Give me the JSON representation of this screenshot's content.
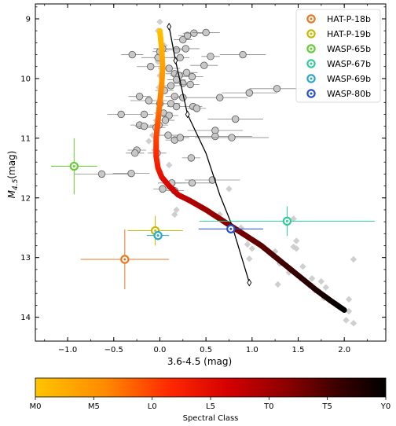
{
  "chart_data": {
    "type": "scatter",
    "title": "",
    "xlabel": "3.6-4.5 (mag)",
    "ylabel": "M_{4.5}(mag)",
    "xlim": [
      -1.35,
      2.45
    ],
    "ylim": [
      14.4,
      8.75
    ],
    "y_inverted": true,
    "xticks": [
      -1.0,
      -0.5,
      0.0,
      0.5,
      1.0,
      1.5,
      2.0
    ],
    "xtick_labels": [
      "−1.0",
      "−0.5",
      "0.0",
      "0.5",
      "1.0",
      "1.5",
      "2.0"
    ],
    "yticks": [
      9,
      10,
      11,
      12,
      13,
      14
    ],
    "ytick_labels": [
      "9",
      "10",
      "11",
      "12",
      "13",
      "14"
    ],
    "grid": false,
    "legend_position": "upper right",
    "colorbar": {
      "label": "Spectral Class",
      "ticks": [
        "M0",
        "M5",
        "L0",
        "L5",
        "T0",
        "T5",
        "Y0"
      ],
      "colors": [
        "#ffc400",
        "#ff8a00",
        "#ff2a00",
        "#d40000",
        "#8c0000",
        "#3c0000",
        "#000000"
      ]
    },
    "field_objects": [
      {
        "x": 0.0,
        "y": 9.05
      },
      {
        "x": -0.02,
        "y": 9.2
      },
      {
        "x": 0.05,
        "y": 9.45
      },
      {
        "x": 0.02,
        "y": 9.55
      },
      {
        "x": -0.03,
        "y": 9.65
      },
      {
        "x": -0.02,
        "y": 9.72
      },
      {
        "x": 0.0,
        "y": 9.95
      },
      {
        "x": -0.01,
        "y": 10.15
      },
      {
        "x": 0.0,
        "y": 10.4
      },
      {
        "x": -0.04,
        "y": 10.7
      },
      {
        "x": -0.08,
        "y": 10.95
      },
      {
        "x": -0.12,
        "y": 11.05
      },
      {
        "x": -0.06,
        "y": 11.2
      },
      {
        "x": 0.1,
        "y": 11.45
      },
      {
        "x": 0.15,
        "y": 11.85
      },
      {
        "x": 0.18,
        "y": 12.2
      },
      {
        "x": 0.16,
        "y": 12.28
      },
      {
        "x": 0.65,
        "y": 12.28
      },
      {
        "x": 0.75,
        "y": 11.85
      },
      {
        "x": 0.88,
        "y": 12.5
      },
      {
        "x": 0.95,
        "y": 12.78
      },
      {
        "x": 1.0,
        "y": 12.85
      },
      {
        "x": 0.97,
        "y": 13.02
      },
      {
        "x": 1.25,
        "y": 12.9
      },
      {
        "x": 1.3,
        "y": 13.1
      },
      {
        "x": 1.28,
        "y": 13.45
      },
      {
        "x": 1.4,
        "y": 13.25
      },
      {
        "x": 1.45,
        "y": 12.35
      },
      {
        "x": 1.48,
        "y": 12.72
      },
      {
        "x": 1.45,
        "y": 12.82
      },
      {
        "x": 1.48,
        "y": 12.85
      },
      {
        "x": 1.55,
        "y": 13.15
      },
      {
        "x": 1.65,
        "y": 13.35
      },
      {
        "x": 1.75,
        "y": 13.4
      },
      {
        "x": 1.68,
        "y": 13.55
      },
      {
        "x": 1.8,
        "y": 13.5
      },
      {
        "x": 1.78,
        "y": 13.68
      },
      {
        "x": 2.05,
        "y": 13.7
      },
      {
        "x": 2.05,
        "y": 13.9
      },
      {
        "x": 2.02,
        "y": 14.05
      },
      {
        "x": 2.1,
        "y": 14.1
      },
      {
        "x": 2.1,
        "y": 13.03
      }
    ],
    "planets": [
      {
        "x": -0.3,
        "y": 9.6,
        "xerr": 0.12,
        "yerr": 0.05
      },
      {
        "x": -0.1,
        "y": 9.8,
        "xerr": 0.15,
        "yerr": 0.05
      },
      {
        "x": -0.02,
        "y": 9.65,
        "xerr": 0.18,
        "yerr": 0.05
      },
      {
        "x": 0.0,
        "y": 9.55,
        "xerr": 0.08,
        "yerr": 0.05
      },
      {
        "x": 0.03,
        "y": 9.5,
        "xerr": 0.1,
        "yerr": 0.05
      },
      {
        "x": 0.18,
        "y": 9.52,
        "xerr": 0.12,
        "yerr": 0.05
      },
      {
        "x": 0.22,
        "y": 9.65,
        "xerr": 0.1,
        "yerr": 0.05
      },
      {
        "x": 0.28,
        "y": 9.5,
        "xerr": 0.15,
        "yerr": 0.05
      },
      {
        "x": 0.25,
        "y": 9.35,
        "xerr": 0.1,
        "yerr": 0.05
      },
      {
        "x": 0.3,
        "y": 9.28,
        "xerr": 0.1,
        "yerr": 0.05
      },
      {
        "x": 0.37,
        "y": 9.24,
        "xerr": 0.12,
        "yerr": 0.05
      },
      {
        "x": 0.5,
        "y": 9.23,
        "xerr": 0.15,
        "yerr": 0.05
      },
      {
        "x": 0.55,
        "y": 9.63,
        "xerr": 0.1,
        "yerr": 0.05
      },
      {
        "x": 0.48,
        "y": 9.78,
        "xerr": 0.15,
        "yerr": 0.05
      },
      {
        "x": 0.9,
        "y": 9.6,
        "xerr": 0.25,
        "yerr": 0.05
      },
      {
        "x": 0.1,
        "y": 9.83,
        "xerr": 0.12,
        "yerr": 0.05
      },
      {
        "x": 0.16,
        "y": 9.92,
        "xerr": 0.1,
        "yerr": 0.05
      },
      {
        "x": 0.21,
        "y": 9.95,
        "xerr": 0.1,
        "yerr": 0.05
      },
      {
        "x": 0.29,
        "y": 9.9,
        "xerr": 0.12,
        "yerr": 0.05
      },
      {
        "x": 0.35,
        "y": 9.97,
        "xerr": 0.12,
        "yerr": 0.05
      },
      {
        "x": 0.25,
        "y": 10.08,
        "xerr": 0.1,
        "yerr": 0.05
      },
      {
        "x": 0.18,
        "y": 10.02,
        "xerr": 0.1,
        "yerr": 0.05
      },
      {
        "x": 0.33,
        "y": 10.1,
        "xerr": 0.1,
        "yerr": 0.05
      },
      {
        "x": 0.12,
        "y": 10.12,
        "xerr": 0.1,
        "yerr": 0.05
      },
      {
        "x": 0.05,
        "y": 10.2,
        "xerr": 0.1,
        "yerr": 0.05
      },
      {
        "x": 0.16,
        "y": 10.3,
        "xerr": 0.1,
        "yerr": 0.05
      },
      {
        "x": 0.25,
        "y": 10.32,
        "xerr": 0.1,
        "yerr": 0.05
      },
      {
        "x": -0.22,
        "y": 10.3,
        "xerr": 0.12,
        "yerr": 0.05
      },
      {
        "x": -0.12,
        "y": 10.37,
        "xerr": 0.2,
        "yerr": 0.05
      },
      {
        "x": 0.0,
        "y": 10.42,
        "xerr": 0.1,
        "yerr": 0.05
      },
      {
        "x": 0.12,
        "y": 10.42,
        "xerr": 0.1,
        "yerr": 0.05
      },
      {
        "x": 0.18,
        "y": 10.47,
        "xerr": 0.1,
        "yerr": 0.05
      },
      {
        "x": 0.36,
        "y": 10.47,
        "xerr": 0.1,
        "yerr": 0.05
      },
      {
        "x": 0.4,
        "y": 10.5,
        "xerr": 0.1,
        "yerr": 0.05
      },
      {
        "x": 0.65,
        "y": 10.32,
        "xerr": 0.3,
        "yerr": 0.05
      },
      {
        "x": 0.97,
        "y": 10.24,
        "xerr": 0.3,
        "yerr": 0.05
      },
      {
        "x": 1.27,
        "y": 10.17,
        "xerr": 0.3,
        "yerr": 0.05
      },
      {
        "x": -0.42,
        "y": 10.6,
        "xerr": 0.15,
        "yerr": 0.05
      },
      {
        "x": -0.17,
        "y": 10.6,
        "xerr": 0.1,
        "yerr": 0.05
      },
      {
        "x": 0.04,
        "y": 10.58,
        "xerr": 0.1,
        "yerr": 0.05
      },
      {
        "x": 0.1,
        "y": 10.62,
        "xerr": 0.1,
        "yerr": 0.05
      },
      {
        "x": 0.06,
        "y": 10.7,
        "xerr": 0.1,
        "yerr": 0.05
      },
      {
        "x": -0.22,
        "y": 10.78,
        "xerr": 0.1,
        "yerr": 0.05
      },
      {
        "x": -0.17,
        "y": 10.8,
        "xerr": 0.1,
        "yerr": 0.05
      },
      {
        "x": -0.04,
        "y": 10.82,
        "xerr": 0.1,
        "yerr": 0.05
      },
      {
        "x": -0.01,
        "y": 10.78,
        "xerr": 0.1,
        "yerr": 0.05
      },
      {
        "x": 0.6,
        "y": 10.87,
        "xerr": 0.3,
        "yerr": 0.05
      },
      {
        "x": 0.82,
        "y": 10.68,
        "xerr": 0.3,
        "yerr": 0.05
      },
      {
        "x": 0.6,
        "y": 10.97,
        "xerr": 0.4,
        "yerr": 0.05
      },
      {
        "x": 0.78,
        "y": 10.99,
        "xerr": 0.4,
        "yerr": 0.05
      },
      {
        "x": 0.09,
        "y": 10.95,
        "xerr": 0.1,
        "yerr": 0.05
      },
      {
        "x": 0.16,
        "y": 11.03,
        "xerr": 0.1,
        "yerr": 0.05
      },
      {
        "x": 0.22,
        "y": 10.99,
        "xerr": 0.1,
        "yerr": 0.05
      },
      {
        "x": -0.25,
        "y": 11.2,
        "xerr": 0.1,
        "yerr": 0.05
      },
      {
        "x": -0.27,
        "y": 11.25,
        "xerr": 0.1,
        "yerr": 0.05
      },
      {
        "x": -0.03,
        "y": 11.25,
        "xerr": 0.1,
        "yerr": 0.05
      },
      {
        "x": 0.34,
        "y": 11.33,
        "xerr": 0.1,
        "yerr": 0.05
      },
      {
        "x": -0.63,
        "y": 11.6,
        "xerr": 0.3,
        "yerr": 0.05
      },
      {
        "x": -0.31,
        "y": 11.59,
        "xerr": 0.2,
        "yerr": 0.05
      },
      {
        "x": 0.13,
        "y": 11.75,
        "xerr": 0.15,
        "yerr": 0.05
      },
      {
        "x": 0.35,
        "y": 11.75,
        "xerr": 0.2,
        "yerr": 0.05
      },
      {
        "x": 0.57,
        "y": 11.7,
        "xerr": 0.3,
        "yerr": 0.05
      },
      {
        "x": 0.03,
        "y": 11.85,
        "xerr": 0.1,
        "yerr": 0.05
      },
      {
        "x": 0.16,
        "y": 11.88,
        "xerr": 0.1,
        "yerr": 0.05
      }
    ],
    "sequence": [
      {
        "x": 0.0,
        "y": 9.2
      },
      {
        "x": 0.02,
        "y": 9.5
      },
      {
        "x": 0.03,
        "y": 9.8
      },
      {
        "x": 0.02,
        "y": 10.1
      },
      {
        "x": 0.0,
        "y": 10.4
      },
      {
        "x": -0.02,
        "y": 10.7
      },
      {
        "x": -0.04,
        "y": 11.0
      },
      {
        "x": -0.04,
        "y": 11.3
      },
      {
        "x": -0.02,
        "y": 11.5
      },
      {
        "x": 0.02,
        "y": 11.65
      },
      {
        "x": 0.1,
        "y": 11.8
      },
      {
        "x": 0.2,
        "y": 11.95
      },
      {
        "x": 0.33,
        "y": 12.05
      },
      {
        "x": 0.5,
        "y": 12.2
      },
      {
        "x": 0.7,
        "y": 12.4
      },
      {
        "x": 0.9,
        "y": 12.6
      },
      {
        "x": 1.1,
        "y": 12.8
      },
      {
        "x": 1.3,
        "y": 13.05
      },
      {
        "x": 1.5,
        "y": 13.3
      },
      {
        "x": 1.7,
        "y": 13.55
      },
      {
        "x": 1.85,
        "y": 13.72
      },
      {
        "x": 2.0,
        "y": 13.88
      }
    ],
    "isochrone": [
      {
        "x": 0.1,
        "y": 9.13
      },
      {
        "x": 0.17,
        "y": 9.7
      },
      {
        "x": 0.3,
        "y": 10.6
      },
      {
        "x": 0.5,
        "y": 11.25
      },
      {
        "x": 0.65,
        "y": 11.95
      },
      {
        "x": 0.78,
        "y": 12.45
      },
      {
        "x": 0.97,
        "y": 13.42
      }
    ],
    "isochrone_diamonds": [
      {
        "x": 0.1,
        "y": 9.13
      },
      {
        "x": 0.17,
        "y": 9.7
      },
      {
        "x": 0.3,
        "y": 10.6
      },
      {
        "x": 0.97,
        "y": 13.42
      }
    ],
    "highlighted": [
      {
        "name": "HAT-P-18b",
        "color": "#e87722",
        "x": -0.38,
        "y": 13.03,
        "xerr": 0.48,
        "yerr": 0.5
      },
      {
        "name": "HAT-P-19b",
        "color": "#c9b800",
        "x": -0.05,
        "y": 12.55,
        "xerr": 0.3,
        "yerr": 0.25
      },
      {
        "name": "WASP-65b",
        "color": "#66cc33",
        "x": -0.93,
        "y": 11.47,
        "xerr": 0.25,
        "yerr": 0.47
      },
      {
        "name": "WASP-67b",
        "color": "#33cc99",
        "x": 1.38,
        "y": 12.39,
        "xerr": 0.95,
        "yerr": 0.25
      },
      {
        "name": "WASP-69b",
        "color": "#2aa7c9",
        "x": -0.02,
        "y": 12.63,
        "xerr": 0.12,
        "yerr": 0.08
      },
      {
        "name": "WASP-80b",
        "color": "#2850c8",
        "x": 0.77,
        "y": 12.52,
        "xerr": 0.35,
        "yerr": 0.06
      }
    ]
  }
}
